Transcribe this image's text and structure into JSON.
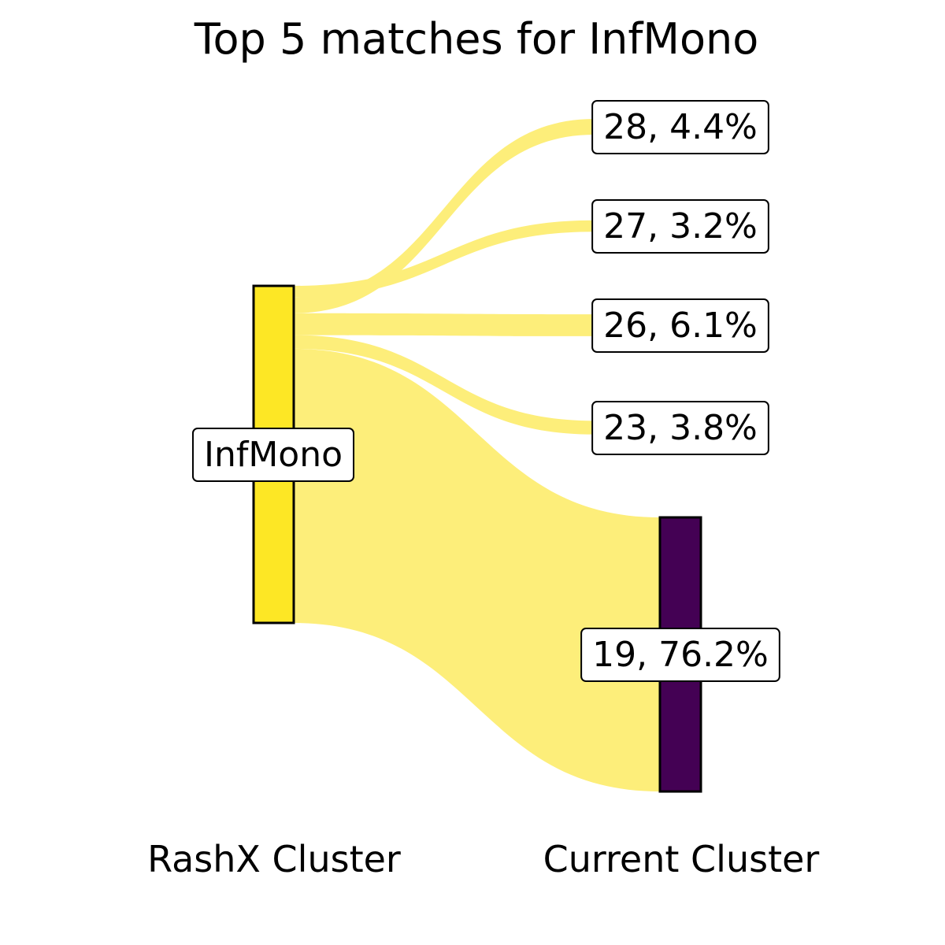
{
  "chart_data": {
    "type": "sankey",
    "title": "Top 5 matches for InfMono",
    "left_axis_label": "RashX Cluster",
    "right_axis_label": "Current Cluster",
    "source": {
      "label": "InfMono",
      "color": "#fde725"
    },
    "link_color": "#fdee7a",
    "targets": [
      {
        "label": "28, 4.4%",
        "cluster": "28",
        "percent": 4.4,
        "color": "#fdee7a",
        "node_visible": false
      },
      {
        "label": "27, 3.2%",
        "cluster": "27",
        "percent": 3.2,
        "color": "#fdee7a",
        "node_visible": false
      },
      {
        "label": "26, 6.1%",
        "cluster": "26",
        "percent": 6.1,
        "color": "#fdee7a",
        "node_visible": false
      },
      {
        "label": "23, 3.8%",
        "cluster": "23",
        "percent": 3.8,
        "color": "#fdee7a",
        "node_visible": false
      },
      {
        "label": "19, 76.2%",
        "cluster": "19",
        "percent": 76.2,
        "color": "#440154",
        "node_visible": true
      }
    ]
  }
}
